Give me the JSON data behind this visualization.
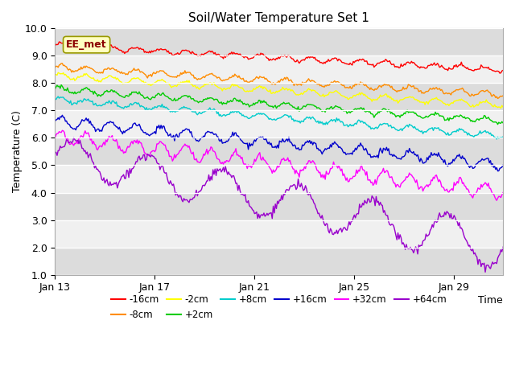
{
  "title": "Soil/Water Temperature Set 1",
  "xlabel": "Time",
  "ylabel": "Temperature (C)",
  "ylim": [
    1.0,
    10.0
  ],
  "yticks": [
    1.0,
    2.0,
    3.0,
    4.0,
    5.0,
    6.0,
    7.0,
    8.0,
    9.0,
    10.0
  ],
  "annotation_text": "EE_met",
  "annotation_color": "#8B0000",
  "annotation_bg": "#FFFFC0",
  "annotation_border": "#999900",
  "bg_color": "#FFFFFF",
  "band_color_dark": "#DCDCDC",
  "band_color_light": "#F0F0F0",
  "series": [
    {
      "label": "-16cm",
      "color": "#FF0000",
      "start": 9.38,
      "end": 8.48,
      "amp": 0.09,
      "period": 24,
      "noise": 0.03
    },
    {
      "label": "-8cm",
      "color": "#FF8C00",
      "start": 8.58,
      "end": 7.58,
      "amp": 0.1,
      "period": 24,
      "noise": 0.03
    },
    {
      "label": "-2cm",
      "color": "#FFFF00",
      "start": 8.28,
      "end": 7.18,
      "amp": 0.1,
      "period": 24,
      "noise": 0.03
    },
    {
      "label": "+2cm",
      "color": "#00CC00",
      "start": 7.78,
      "end": 6.62,
      "amp": 0.1,
      "period": 24,
      "noise": 0.03
    },
    {
      "label": "+8cm",
      "color": "#00CCCC",
      "start": 7.4,
      "end": 6.08,
      "amp": 0.1,
      "period": 24,
      "noise": 0.03
    },
    {
      "label": "+16cm",
      "color": "#0000CC",
      "start": 6.6,
      "end": 5.02,
      "amp": 0.18,
      "period": 24,
      "noise": 0.05
    },
    {
      "label": "+32cm",
      "color": "#FF00FF",
      "start": 6.05,
      "end": 4.0,
      "amp": 0.25,
      "period": 24,
      "noise": 0.06
    },
    {
      "label": "+64cm",
      "color": "#9900CC",
      "start": 5.4,
      "end": 2.0,
      "amp_start": 0.6,
      "amp_end": 0.85,
      "period": 72,
      "noise": 0.08,
      "oscillating": true
    }
  ],
  "n_points": 432,
  "hours_per_point": 1,
  "xtick_labels": [
    "Jan 13",
    "Jan 17",
    "Jan 21",
    "Jan 25",
    "Jan 29"
  ],
  "xtick_positions": [
    0,
    96,
    192,
    288,
    384
  ]
}
